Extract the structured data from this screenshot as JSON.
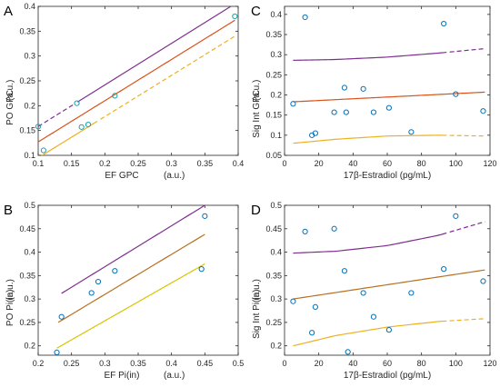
{
  "colors": {
    "upper": "#7e2f8e",
    "fit": "#d95319",
    "fit_brown": "#b7701f",
    "lower": "#edb120",
    "lower_yellow": "#d8c600",
    "points": "#0072bd",
    "points_teal": "#1aa0b0"
  },
  "chart_data": [
    {
      "panel": "A",
      "type": "scatter",
      "xlabel": "EF GPC",
      "xunit": "(a.u.)",
      "ylabel": "PO GPC",
      "yunit": "(a.u.)",
      "xlim": [
        0.1,
        0.4
      ],
      "ylim": [
        0.1,
        0.4
      ],
      "xticks": [
        0.1,
        0.15,
        0.2,
        0.25,
        0.3,
        0.35,
        0.4
      ],
      "xticklabels": [
        "0.1",
        "0.15",
        "0.2",
        "0.25",
        "0.3",
        "0.35",
        "0.4"
      ],
      "yticks": [
        0.1,
        0.15,
        0.2,
        0.25,
        0.3,
        0.35,
        0.4
      ],
      "yticklabels": [
        "0.1",
        "0.15",
        "0.2",
        "0.25",
        "0.3",
        "0.35",
        "0.4"
      ],
      "points": [
        {
          "x": 0.1,
          "y": 0.158
        },
        {
          "x": 0.108,
          "y": 0.11
        },
        {
          "x": 0.158,
          "y": 0.205
        },
        {
          "x": 0.165,
          "y": 0.157
        },
        {
          "x": 0.175,
          "y": 0.162
        },
        {
          "x": 0.215,
          "y": 0.22
        },
        {
          "x": 0.395,
          "y": 0.38
        }
      ],
      "lines": [
        {
          "role": "upper",
          "x": [
            0.1,
            0.395
          ],
          "y": [
            0.158,
            0.405
          ],
          "dash_below_x": 0.155
        },
        {
          "role": "fit",
          "x": [
            0.1,
            0.395
          ],
          "y": [
            0.127,
            0.372
          ]
        },
        {
          "role": "lower",
          "x": [
            0.1,
            0.395
          ],
          "y": [
            0.095,
            0.34
          ],
          "dash_above_x": 0.19
        }
      ]
    },
    {
      "panel": "B",
      "type": "scatter",
      "xlabel": "EF Pi(in)",
      "xunit": "(a.u.)",
      "ylabel": "PO Pi(in)",
      "yunit": "(a.u.)",
      "xlim": [
        0.2,
        0.5
      ],
      "ylim": [
        0.18,
        0.5
      ],
      "xticks": [
        0.2,
        0.25,
        0.3,
        0.35,
        0.4,
        0.45,
        0.5
      ],
      "xticklabels": [
        "0.2",
        "0.25",
        "0.3",
        "0.35",
        "0.4",
        "0.45",
        "0.5"
      ],
      "yticks": [
        0.2,
        0.25,
        0.3,
        0.35,
        0.4,
        0.45,
        0.5
      ],
      "yticklabels": [
        "0.2",
        "0.25",
        "0.3",
        "0.35",
        "0.4",
        "0.45",
        "0.5"
      ],
      "points": [
        {
          "x": 0.228,
          "y": 0.186
        },
        {
          "x": 0.235,
          "y": 0.262
        },
        {
          "x": 0.28,
          "y": 0.313
        },
        {
          "x": 0.29,
          "y": 0.337
        },
        {
          "x": 0.315,
          "y": 0.36
        },
        {
          "x": 0.445,
          "y": 0.364
        },
        {
          "x": 0.45,
          "y": 0.477
        }
      ],
      "lines": [
        {
          "role": "upper",
          "x": [
            0.235,
            0.45
          ],
          "y": [
            0.312,
            0.5
          ]
        },
        {
          "role": "fit_brown",
          "x": [
            0.23,
            0.45
          ],
          "y": [
            0.25,
            0.438
          ]
        },
        {
          "role": "lower_yellow",
          "x": [
            0.228,
            0.45
          ],
          "y": [
            0.195,
            0.375
          ]
        }
      ]
    },
    {
      "panel": "C",
      "type": "scatter",
      "xlabel": "17β-Estradiol (pg/mL)",
      "ylabel": "Sig Int GPC",
      "yunit": "(a.u.)",
      "xlim": [
        0,
        120
      ],
      "ylim": [
        0.05,
        0.42
      ],
      "xticks": [
        0,
        20,
        40,
        60,
        80,
        100,
        120
      ],
      "xticklabels": [
        "0",
        "20",
        "40",
        "60",
        "80",
        "100",
        "120"
      ],
      "yticks": [
        0.05,
        0.1,
        0.15,
        0.2,
        0.25,
        0.3,
        0.35,
        0.4
      ],
      "yticklabels": [
        "0.05",
        "0.1",
        "0.15",
        "0.2",
        "0.25",
        "0.3",
        "0.35",
        "0.4"
      ],
      "points": [
        {
          "x": 5,
          "y": 0.178
        },
        {
          "x": 12,
          "y": 0.393
        },
        {
          "x": 16,
          "y": 0.1
        },
        {
          "x": 18,
          "y": 0.105
        },
        {
          "x": 29,
          "y": 0.157
        },
        {
          "x": 35,
          "y": 0.218
        },
        {
          "x": 36,
          "y": 0.157
        },
        {
          "x": 46,
          "y": 0.215
        },
        {
          "x": 52,
          "y": 0.157
        },
        {
          "x": 61,
          "y": 0.168
        },
        {
          "x": 74,
          "y": 0.108
        },
        {
          "x": 93,
          "y": 0.377
        },
        {
          "x": 100,
          "y": 0.202
        },
        {
          "x": 116,
          "y": 0.16
        }
      ],
      "lines": [
        {
          "role": "upper",
          "x": [
            5,
            30,
            60,
            90,
            117
          ],
          "y": [
            0.286,
            0.288,
            0.294,
            0.304,
            0.315
          ],
          "dash_above_x": 95
        },
        {
          "role": "fit",
          "x": [
            5,
            117
          ],
          "y": [
            0.183,
            0.207
          ]
        },
        {
          "role": "lower",
          "x": [
            5,
            30,
            60,
            90,
            117
          ],
          "y": [
            0.08,
            0.09,
            0.098,
            0.1,
            0.098
          ],
          "dash_above_x": 95
        }
      ]
    },
    {
      "panel": "D",
      "type": "scatter",
      "xlabel": "17β-Estradiol (pg/mL)",
      "ylabel": "Sig Int Pi(in)",
      "yunit": "(a.u.)",
      "xlim": [
        0,
        120
      ],
      "ylim": [
        0.18,
        0.5
      ],
      "xticks": [
        0,
        20,
        40,
        60,
        80,
        100,
        120
      ],
      "xticklabels": [
        "0",
        "20",
        "40",
        "60",
        "80",
        "100",
        "120"
      ],
      "yticks": [
        0.2,
        0.25,
        0.3,
        0.35,
        0.4,
        0.45,
        0.5
      ],
      "yticklabels": [
        "0.2",
        "0.25",
        "0.3",
        "0.35",
        "0.4",
        "0.45",
        "0.5"
      ],
      "points": [
        {
          "x": 5,
          "y": 0.295
        },
        {
          "x": 12,
          "y": 0.444
        },
        {
          "x": 16,
          "y": 0.228
        },
        {
          "x": 18,
          "y": 0.283
        },
        {
          "x": 29,
          "y": 0.45
        },
        {
          "x": 35,
          "y": 0.36
        },
        {
          "x": 37,
          "y": 0.187
        },
        {
          "x": 46,
          "y": 0.313
        },
        {
          "x": 52,
          "y": 0.262
        },
        {
          "x": 61,
          "y": 0.234
        },
        {
          "x": 74,
          "y": 0.313
        },
        {
          "x": 93,
          "y": 0.364
        },
        {
          "x": 100,
          "y": 0.477
        },
        {
          "x": 116,
          "y": 0.338
        }
      ],
      "lines": [
        {
          "role": "upper",
          "x": [
            5,
            30,
            60,
            90,
            117
          ],
          "y": [
            0.398,
            0.402,
            0.414,
            0.436,
            0.465
          ],
          "dash_above_x": 95
        },
        {
          "role": "fit_brown",
          "x": [
            5,
            117
          ],
          "y": [
            0.3,
            0.362
          ]
        },
        {
          "role": "lower",
          "x": [
            5,
            30,
            60,
            90,
            117
          ],
          "y": [
            0.2,
            0.222,
            0.24,
            0.252,
            0.258
          ],
          "dash_above_x": 95
        }
      ]
    }
  ]
}
